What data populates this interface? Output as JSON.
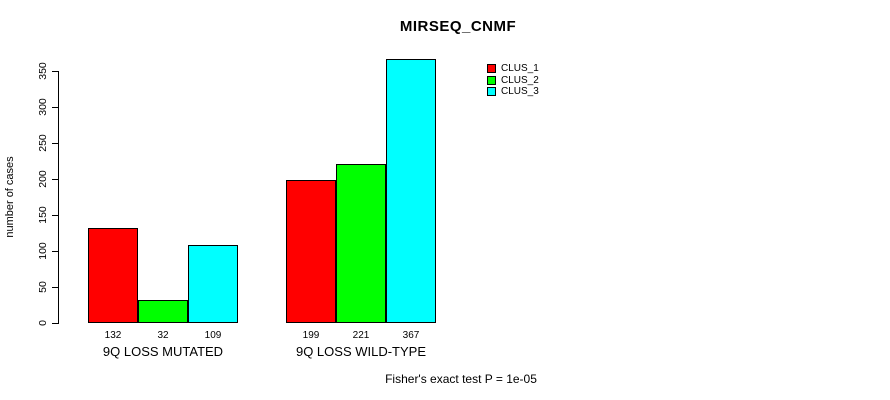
{
  "chart_data": {
    "type": "bar",
    "title": "MIRSEQ_CNMF",
    "ylabel": "number of cases",
    "xlabel": "",
    "ylim": [
      0,
      350
    ],
    "yticks": [
      0,
      50,
      100,
      150,
      200,
      250,
      300,
      350
    ],
    "grid": false,
    "legend_position": "top-right-inside-plot",
    "bar_value_labels_shown": true,
    "categories": [
      "9Q LOSS MUTATED",
      "9Q LOSS WILD-TYPE"
    ],
    "series": [
      {
        "name": "CLUS_1",
        "color": "#ff0000",
        "values": [
          132,
          199
        ]
      },
      {
        "name": "CLUS_2",
        "color": "#00ff00",
        "values": [
          32,
          221
        ]
      },
      {
        "name": "CLUS_3",
        "color": "#00ffff",
        "values": [
          109,
          367
        ]
      }
    ],
    "footnote": "Fisher's exact test P = 1e-05"
  }
}
